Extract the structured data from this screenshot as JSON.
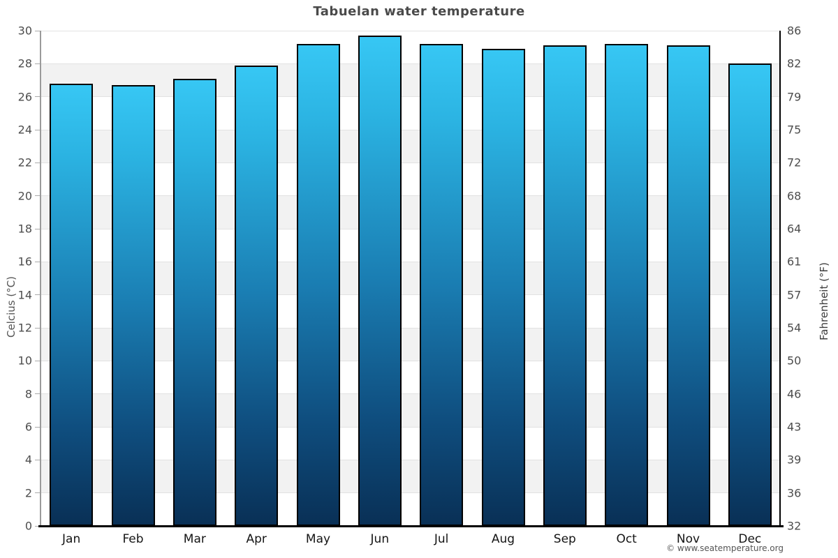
{
  "footer_credit": "© www.seatemperature.org",
  "chart_data": {
    "type": "bar",
    "title": "Tabuelan water temperature",
    "categories": [
      "Jan",
      "Feb",
      "Mar",
      "Apr",
      "May",
      "Jun",
      "Jul",
      "Aug",
      "Sep",
      "Oct",
      "Nov",
      "Dec"
    ],
    "values": [
      26.8,
      26.7,
      27.1,
      27.9,
      29.2,
      29.7,
      29.2,
      28.9,
      29.1,
      29.2,
      29.1,
      28.0
    ],
    "series_name": "Water temperature",
    "ylabel_left": "Celcius (°C)",
    "ylabel_right": "Fahrenheit (°F)",
    "yticks_celsius": [
      30,
      28,
      26,
      24,
      22,
      20,
      18,
      16,
      14,
      12,
      10,
      8,
      6,
      4,
      2,
      0
    ],
    "yticks_fahrenheit": [
      86,
      82,
      79,
      75,
      72,
      68,
      64,
      61,
      57,
      54,
      50,
      46,
      43,
      39,
      36,
      32
    ],
    "ylim": [
      0,
      30
    ],
    "legend": "none",
    "grid": "horizontal gridlines every 2°C with alternating white and grey bands",
    "colors": {
      "bar_gradient_top": "#37c7f4",
      "bar_gradient_bottom": "#093056",
      "bar_border": "#000000",
      "band_alt": "#f2f2f2",
      "band_main": "#ffffff",
      "gridline": "#e2e2e2",
      "axis_left": "#9a9a9a",
      "axis_right": "#000000",
      "axis_bottom": "#000000",
      "title_color": "#4a4a4a",
      "tick_label_color": "#4d4d4d"
    }
  }
}
